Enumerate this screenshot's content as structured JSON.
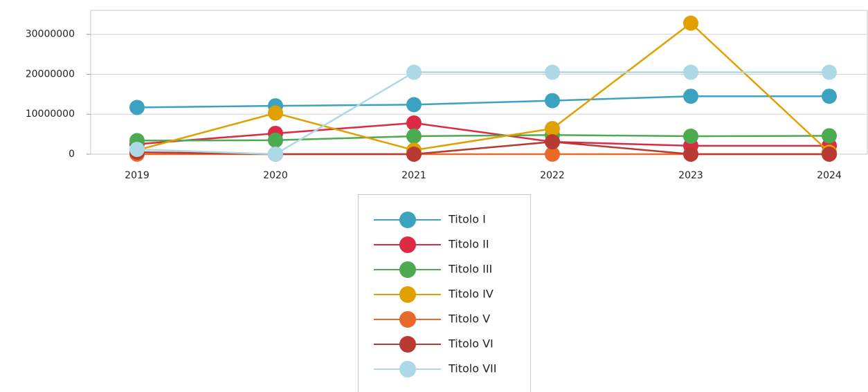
{
  "chart_data": {
    "type": "line",
    "x": [
      "2019",
      "2020",
      "2021",
      "2022",
      "2023",
      "2024"
    ],
    "series": [
      {
        "name": "Titolo I",
        "color": "#3ba3c0",
        "values": [
          11700000,
          12100000,
          12400000,
          13400000,
          14500000,
          14500000
        ]
      },
      {
        "name": "Titolo II",
        "color": "#dc2a45",
        "values": [
          2500000,
          5200000,
          7800000,
          3100000,
          2100000,
          2100000
        ]
      },
      {
        "name": "Titolo III",
        "color": "#4caa50",
        "values": [
          3400000,
          3500000,
          4500000,
          4800000,
          4500000,
          4600000
        ]
      },
      {
        "name": "Titolo IV",
        "color": "#e0a000",
        "values": [
          1000000,
          10300000,
          1000000,
          6400000,
          32800000,
          500000
        ]
      },
      {
        "name": "Titolo V",
        "color": "#e8692a",
        "values": [
          0,
          0,
          0,
          0,
          0,
          0
        ]
      },
      {
        "name": "Titolo VI",
        "color": "#b83a32",
        "values": [
          500000,
          0,
          0,
          3100000,
          0,
          0
        ]
      },
      {
        "name": "Titolo VII",
        "color": "#add8e6",
        "values": [
          1200000,
          0,
          20500000,
          20500000,
          20500000,
          20500000
        ]
      }
    ],
    "ylim": [
      0,
      36000000
    ],
    "yticks": [
      0,
      10000000,
      20000000,
      30000000
    ],
    "grid": true
  }
}
